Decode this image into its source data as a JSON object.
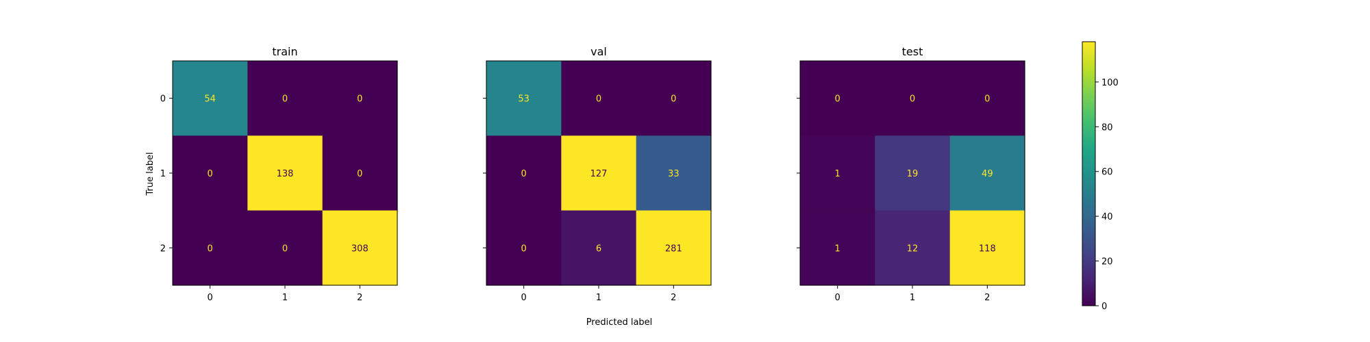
{
  "chart_data": {
    "type": "heatmap",
    "xlabel": "Predicted label",
    "ylabel": "True label",
    "categories": [
      "0",
      "1",
      "2"
    ],
    "colorbar": {
      "min": 0,
      "max": 118,
      "ticks": [
        0,
        20,
        40,
        60,
        80,
        100
      ],
      "colormap": "viridis"
    },
    "panels": [
      {
        "title": "train",
        "matrix": [
          [
            54,
            0,
            0
          ],
          [
            0,
            138,
            0
          ],
          [
            0,
            0,
            308
          ]
        ]
      },
      {
        "title": "val",
        "matrix": [
          [
            53,
            0,
            0
          ],
          [
            0,
            127,
            33
          ],
          [
            0,
            6,
            281
          ]
        ]
      },
      {
        "title": "test",
        "matrix": [
          [
            0,
            0,
            0
          ],
          [
            1,
            19,
            49
          ],
          [
            1,
            12,
            118
          ]
        ]
      }
    ]
  },
  "colors": {
    "text_on_dark": "#fde725",
    "text_on_light": "#440154"
  }
}
